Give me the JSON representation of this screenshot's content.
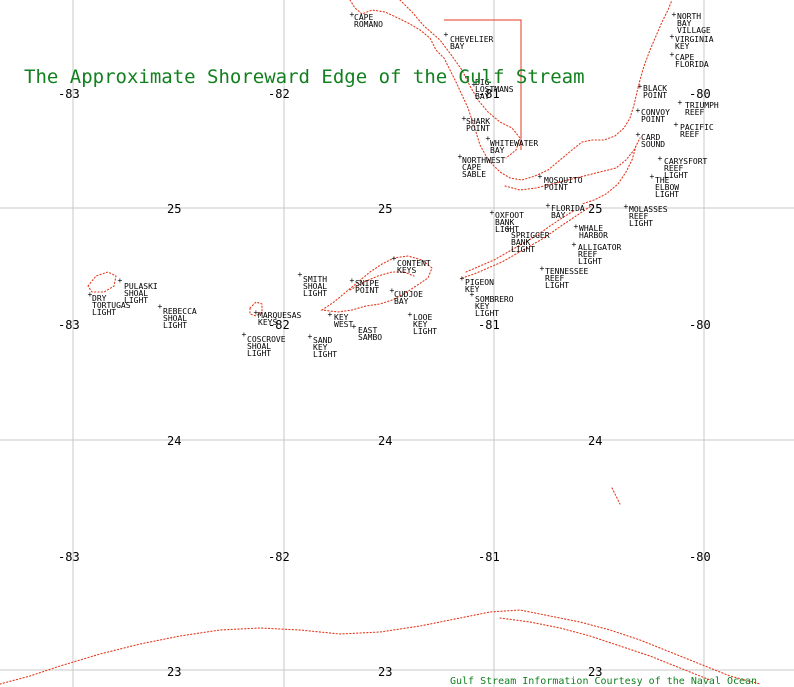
{
  "title": "The Approximate Shoreward Edge of the Gulf Stream",
  "credit": "Gulf Stream Information Courtesy of the Naval Ocean",
  "colors": {
    "title": "#12801f",
    "coastline": "#e33a1e",
    "grid": "#c8c8c8",
    "labels": "#000000"
  },
  "longitude_labels": [
    "-83",
    "-82",
    "-81",
    "-80"
  ],
  "latitude_labels": [
    "25",
    "24",
    "23"
  ],
  "places": [
    {
      "id": "cape-romano",
      "lines": [
        "CAPE",
        "ROMANO"
      ]
    },
    {
      "id": "chevelier-bay",
      "lines": [
        "CHEVELIER",
        "BAY"
      ]
    },
    {
      "id": "big-lostmans-bay",
      "lines": [
        "BIG",
        "LOSTMANS",
        "BAY"
      ]
    },
    {
      "id": "shark-point",
      "lines": [
        "SHARK",
        "POINT"
      ]
    },
    {
      "id": "whitewater-bay",
      "lines": [
        "WHITEWATER",
        "BAY"
      ]
    },
    {
      "id": "northwest-cape-sable",
      "lines": [
        "NORTHWEST",
        "CAPE",
        "SABLE"
      ]
    },
    {
      "id": "mosquito-point",
      "lines": [
        "MOSQUITO",
        "POINT"
      ]
    },
    {
      "id": "florida-bay",
      "lines": [
        "FLORIDA",
        "BAY"
      ]
    },
    {
      "id": "oxfoot-bank-light",
      "lines": [
        "OXFOOT",
        "BANK",
        "LIGHT"
      ]
    },
    {
      "id": "sprigger-bank-light",
      "lines": [
        "SPRIGGER",
        "BANK",
        "LIGHT"
      ]
    },
    {
      "id": "north-bay-village",
      "lines": [
        "NORTH",
        "BAY",
        "VILLAGE"
      ]
    },
    {
      "id": "virginia-key",
      "lines": [
        "VIRGINIA",
        "KEY"
      ]
    },
    {
      "id": "cape-florida",
      "lines": [
        "CAPE",
        "FLORIDA"
      ]
    },
    {
      "id": "black-point",
      "lines": [
        "BLACK",
        "POINT"
      ]
    },
    {
      "id": "triumph-reef",
      "lines": [
        "TRIUMPH",
        "REEF"
      ]
    },
    {
      "id": "convoy-point",
      "lines": [
        "CONVOY",
        "POINT"
      ]
    },
    {
      "id": "pacific-reef",
      "lines": [
        "PACIFIC",
        "REEF"
      ]
    },
    {
      "id": "card-sound",
      "lines": [
        "CARD",
        "SOUND"
      ]
    },
    {
      "id": "carysfort-reef-light",
      "lines": [
        "CARYSFORT",
        "REEF",
        "LIGHT"
      ]
    },
    {
      "id": "the-elbow-light",
      "lines": [
        "THE",
        "ELBOW",
        "LIGHT"
      ]
    },
    {
      "id": "molasses-reef-light",
      "lines": [
        "MOLASSES",
        "REEF",
        "LIGHT"
      ]
    },
    {
      "id": "whale-harbor",
      "lines": [
        "WHALE",
        "HARBOR"
      ]
    },
    {
      "id": "alligator-reef-light",
      "lines": [
        "ALLIGATOR",
        "REEF",
        "LIGHT"
      ]
    },
    {
      "id": "tennessee-reef-light",
      "lines": [
        "TENNESSEE",
        "REEF",
        "LIGHT"
      ]
    },
    {
      "id": "content-keys",
      "lines": [
        "CONTENT",
        "KEYS"
      ]
    },
    {
      "id": "smith-shoal-light",
      "lines": [
        "SMITH",
        "SHOAL",
        "LIGHT"
      ]
    },
    {
      "id": "snipe-point",
      "lines": [
        "SNIPE",
        "POINT"
      ]
    },
    {
      "id": "cudjoe-bay",
      "lines": [
        "CUDJOE",
        "BAY"
      ]
    },
    {
      "id": "pigeon-key",
      "lines": [
        "PIGEON",
        "KEY"
      ]
    },
    {
      "id": "sombrero-key-light",
      "lines": [
        "SOMBRERO",
        "KEY",
        "LIGHT"
      ]
    },
    {
      "id": "looe-key-light",
      "lines": [
        "LOOE",
        "KEY",
        "LIGHT"
      ]
    },
    {
      "id": "pulaski-shoal-light",
      "lines": [
        "PULASKI",
        "SHOAL",
        "LIGHT"
      ]
    },
    {
      "id": "dry-tortugas-light",
      "lines": [
        "DRY",
        "TORTUGAS",
        "LIGHT"
      ]
    },
    {
      "id": "rebecca-shoal-light",
      "lines": [
        "REBECCA",
        "SHOAL",
        "LIGHT"
      ]
    },
    {
      "id": "marquesas-keys",
      "lines": [
        "MARQUESAS",
        "KEYS"
      ]
    },
    {
      "id": "key-west",
      "lines": [
        "KEY",
        "WEST"
      ]
    },
    {
      "id": "east-sambo",
      "lines": [
        "EAST",
        "SAMBO"
      ]
    },
    {
      "id": "coscrove-shoal-light",
      "lines": [
        "COSCROVE",
        "SHOAL",
        "LIGHT"
      ]
    },
    {
      "id": "sand-key-light",
      "lines": [
        "SAND",
        "KEY",
        "LIGHT"
      ]
    }
  ]
}
